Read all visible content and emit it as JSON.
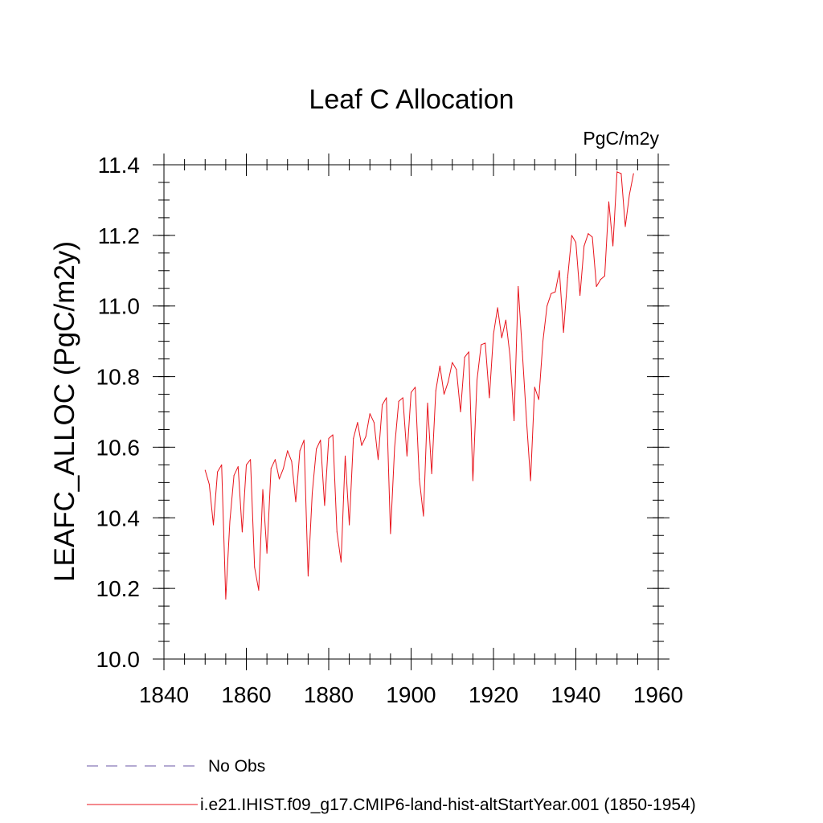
{
  "chart_data": {
    "type": "line",
    "title": "Leaf C Allocation",
    "units_label": "PgC/m2y",
    "ylabel": "LEAFC_ALLOC  (PgC/m2y)",
    "xlabel": "",
    "xlim": [
      1840,
      1960
    ],
    "ylim": [
      10.0,
      11.4
    ],
    "x_ticks": [
      "1840",
      "1860",
      "1880",
      "1900",
      "1920",
      "1940",
      "1960"
    ],
    "y_ticks": [
      "10.0",
      "10.2",
      "10.4",
      "10.6",
      "10.8",
      "11.0",
      "11.2",
      "11.4"
    ],
    "grid": false,
    "legend_position": "bottom-left",
    "colors": {
      "model": "#e8141c",
      "obs": "#8878b8"
    },
    "legend": [
      {
        "label": "No Obs",
        "style": "dashed"
      },
      {
        "label": "i.e21.IHIST.f09_g17.CMIP6-land-hist-altStartYear.001 (1850-1954)",
        "style": "solid"
      }
    ],
    "series": [
      {
        "name": "i.e21.IHIST.f09_g17.CMIP6-land-hist-altStartYear.001 (1850-1954)",
        "x": [
          1850,
          1851,
          1852,
          1853,
          1854,
          1855,
          1856,
          1857,
          1858,
          1859,
          1860,
          1861,
          1862,
          1863,
          1864,
          1865,
          1866,
          1867,
          1868,
          1869,
          1870,
          1871,
          1872,
          1873,
          1874,
          1875,
          1876,
          1877,
          1878,
          1879,
          1880,
          1881,
          1882,
          1883,
          1884,
          1885,
          1886,
          1887,
          1888,
          1889,
          1890,
          1891,
          1892,
          1893,
          1894,
          1895,
          1896,
          1897,
          1898,
          1899,
          1900,
          1901,
          1902,
          1903,
          1904,
          1905,
          1906,
          1907,
          1908,
          1909,
          1910,
          1911,
          1912,
          1913,
          1914,
          1915,
          1916,
          1917,
          1918,
          1919,
          1920,
          1921,
          1922,
          1923,
          1924,
          1925,
          1926,
          1927,
          1928,
          1929,
          1930,
          1931,
          1932,
          1933,
          1934,
          1935,
          1936,
          1937,
          1938,
          1939,
          1940,
          1941,
          1942,
          1943,
          1944,
          1945,
          1946,
          1947,
          1948,
          1949,
          1950,
          1951,
          1952,
          1953,
          1954
        ],
        "y": [
          10.535,
          10.495,
          10.38,
          10.53,
          10.55,
          10.17,
          10.39,
          10.52,
          10.545,
          10.36,
          10.55,
          10.565,
          10.26,
          10.195,
          10.48,
          10.3,
          10.54,
          10.565,
          10.51,
          10.54,
          10.59,
          10.56,
          10.445,
          10.59,
          10.62,
          10.235,
          10.47,
          10.595,
          10.62,
          10.435,
          10.625,
          10.635,
          10.36,
          10.275,
          10.575,
          10.38,
          10.625,
          10.67,
          10.605,
          10.63,
          10.695,
          10.67,
          10.565,
          10.72,
          10.74,
          10.355,
          10.6,
          10.73,
          10.74,
          10.575,
          10.755,
          10.77,
          10.51,
          10.405,
          10.725,
          10.525,
          10.76,
          10.83,
          10.75,
          10.785,
          10.84,
          10.82,
          10.7,
          10.855,
          10.87,
          10.505,
          10.79,
          10.89,
          10.895,
          10.74,
          10.92,
          10.995,
          10.91,
          10.96,
          10.86,
          10.675,
          11.055,
          10.87,
          10.68,
          10.505,
          10.77,
          10.735,
          10.9,
          11.0,
          11.035,
          11.04,
          11.1,
          10.925,
          11.08,
          11.2,
          11.18,
          11.03,
          11.17,
          11.205,
          11.195,
          11.055,
          11.075,
          11.085,
          11.295,
          11.17,
          11.38,
          11.375,
          11.225,
          11.315,
          11.375
        ]
      }
    ]
  }
}
